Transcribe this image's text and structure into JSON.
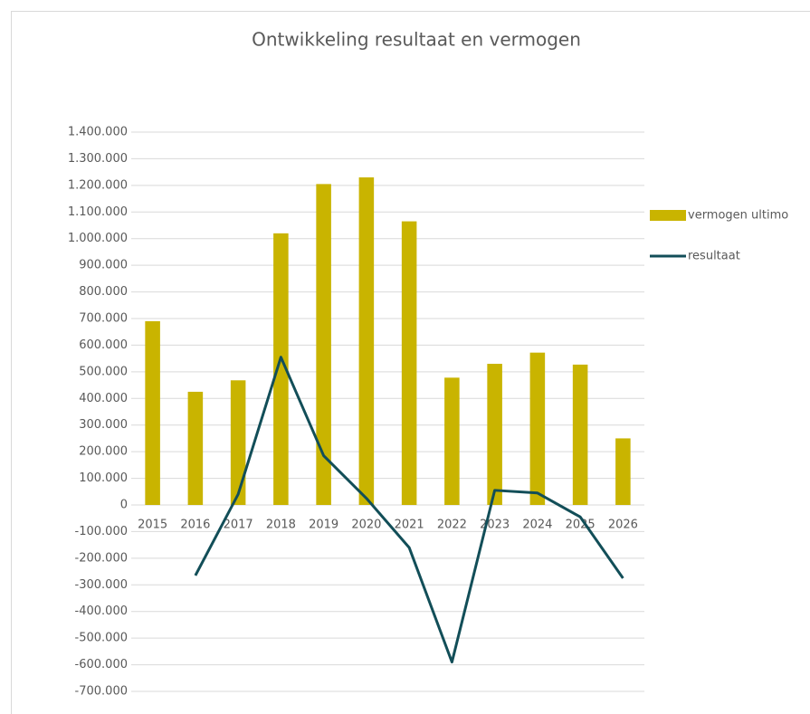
{
  "chart_data": {
    "type": "bar",
    "title": "Ontwikkeling resultaat en vermogen",
    "categories": [
      "2015",
      "2016",
      "2017",
      "2018",
      "2019",
      "2020",
      "2021",
      "2022",
      "2023",
      "2024",
      "2025",
      "2026"
    ],
    "series": [
      {
        "name": "vermogen ultimo",
        "type": "bar",
        "color": "#c9b400",
        "values": [
          690000,
          425000,
          468000,
          1020000,
          1205000,
          1230000,
          1065000,
          478000,
          530000,
          572000,
          527000,
          250000
        ]
      },
      {
        "name": "resultaat",
        "type": "line",
        "color": "#124e58",
        "values": [
          null,
          -265000,
          40000,
          555000,
          185000,
          25000,
          -160000,
          -590000,
          55000,
          45000,
          -45000,
          -275000
        ]
      }
    ],
    "ylim": [
      -700000,
      1400000
    ],
    "yticks": [
      {
        "value": -700000,
        "label": "-700.000"
      },
      {
        "value": -600000,
        "label": "-600.000"
      },
      {
        "value": -500000,
        "label": "-500.000"
      },
      {
        "value": -400000,
        "label": "-400.000"
      },
      {
        "value": -300000,
        "label": "-300.000"
      },
      {
        "value": -200000,
        "label": "-200.000"
      },
      {
        "value": -100000,
        "label": "-100.000"
      },
      0,
      {
        "value": 100000,
        "label": "100.000"
      },
      {
        "value": 200000,
        "label": "200.000"
      },
      {
        "value": 300000,
        "label": "300.000"
      },
      {
        "value": 400000,
        "label": "400.000"
      },
      {
        "value": 500000,
        "label": "500.000"
      },
      {
        "value": 600000,
        "label": "600.000"
      },
      {
        "value": 700000,
        "label": "700.000"
      },
      {
        "value": 800000,
        "label": "800.000"
      },
      {
        "value": 900000,
        "label": "900.000"
      },
      {
        "value": 1000000,
        "label": "1.000.000"
      },
      {
        "value": 1100000,
        "label": "1.100.000"
      },
      {
        "value": 1200000,
        "label": "1.200.000"
      },
      {
        "value": 1300000,
        "label": "1.300.000"
      },
      {
        "value": 1400000,
        "label": "1.400.000"
      }
    ],
    "grid": true,
    "legend": "right"
  }
}
